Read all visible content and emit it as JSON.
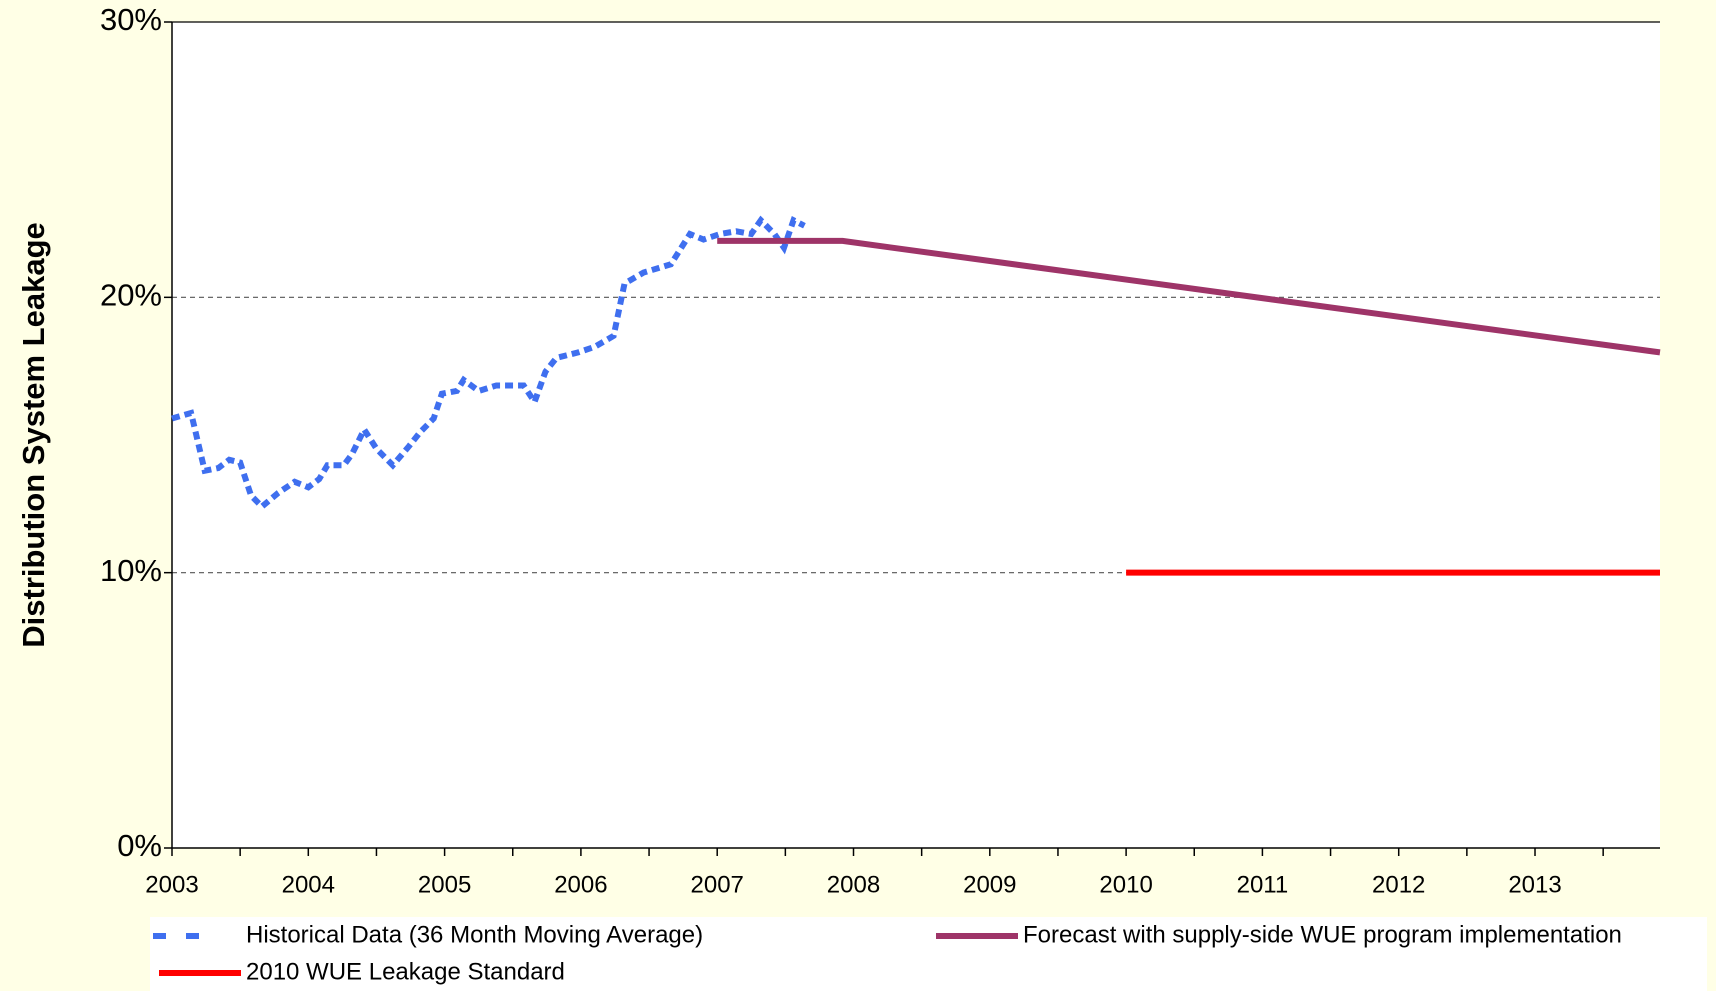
{
  "chart_data": {
    "type": "line",
    "ylabel": "Distribution System Leakage",
    "xlim": [
      2003,
      2013.917
    ],
    "xticks": [
      2003,
      2004,
      2005,
      2006,
      2007,
      2008,
      2009,
      2010,
      2011,
      2012,
      2013
    ],
    "ylim": [
      0,
      30
    ],
    "yticks": [
      {
        "value": 0,
        "label": "0%"
      },
      {
        "value": 10,
        "label": "10%"
      },
      {
        "value": 20,
        "label": "20%"
      },
      {
        "value": 30,
        "label": "30%"
      }
    ],
    "grid": true,
    "legend": "bottom",
    "series": [
      {
        "name": "Historical Data (36 Month Moving Average)",
        "color": "#3f6fef",
        "style": "dashed",
        "x": [
          2003.0,
          2003.14,
          2003.24,
          2003.34,
          2003.42,
          2003.5,
          2003.58,
          2003.66,
          2003.78,
          2003.9,
          2004.0,
          2004.08,
          2004.14,
          2004.26,
          2004.32,
          2004.41,
          2004.5,
          2004.62,
          2004.74,
          2004.82,
          2004.92,
          2004.98,
          2005.09,
          2005.14,
          2005.25,
          2005.38,
          2005.5,
          2005.58,
          2005.66,
          2005.74,
          2005.82,
          2005.98,
          2006.1,
          2006.24,
          2006.32,
          2006.46,
          2006.66,
          2006.8,
          2006.9,
          2007.02,
          2007.14,
          2007.25,
          2007.32,
          2007.42,
          2007.49,
          2007.56,
          2007.64
        ],
        "values": [
          15.6,
          15.8,
          13.7,
          13.8,
          14.1,
          14.0,
          12.8,
          12.4,
          12.9,
          13.3,
          13.1,
          13.4,
          13.9,
          13.9,
          14.3,
          15.2,
          14.5,
          13.9,
          14.6,
          15.1,
          15.6,
          16.5,
          16.6,
          17.0,
          16.6,
          16.8,
          16.8,
          16.8,
          16.2,
          17.3,
          17.8,
          18.0,
          18.2,
          18.6,
          20.5,
          20.9,
          21.2,
          22.3,
          22.1,
          22.3,
          22.4,
          22.3,
          22.8,
          22.3,
          21.8,
          22.8,
          22.6
        ]
      },
      {
        "name": "Forecast with supply-side WUE program implementation",
        "color": "#9e3468",
        "style": "solid",
        "x": [
          2007.0,
          2007.92,
          2013.917
        ],
        "values": [
          22.05,
          22.05,
          18.0
        ]
      },
      {
        "name": "2010 WUE Leakage Standard",
        "color": "#ff0000",
        "style": "solid",
        "x": [
          2010.0,
          2013.917
        ],
        "values": [
          10,
          10
        ]
      }
    ]
  }
}
